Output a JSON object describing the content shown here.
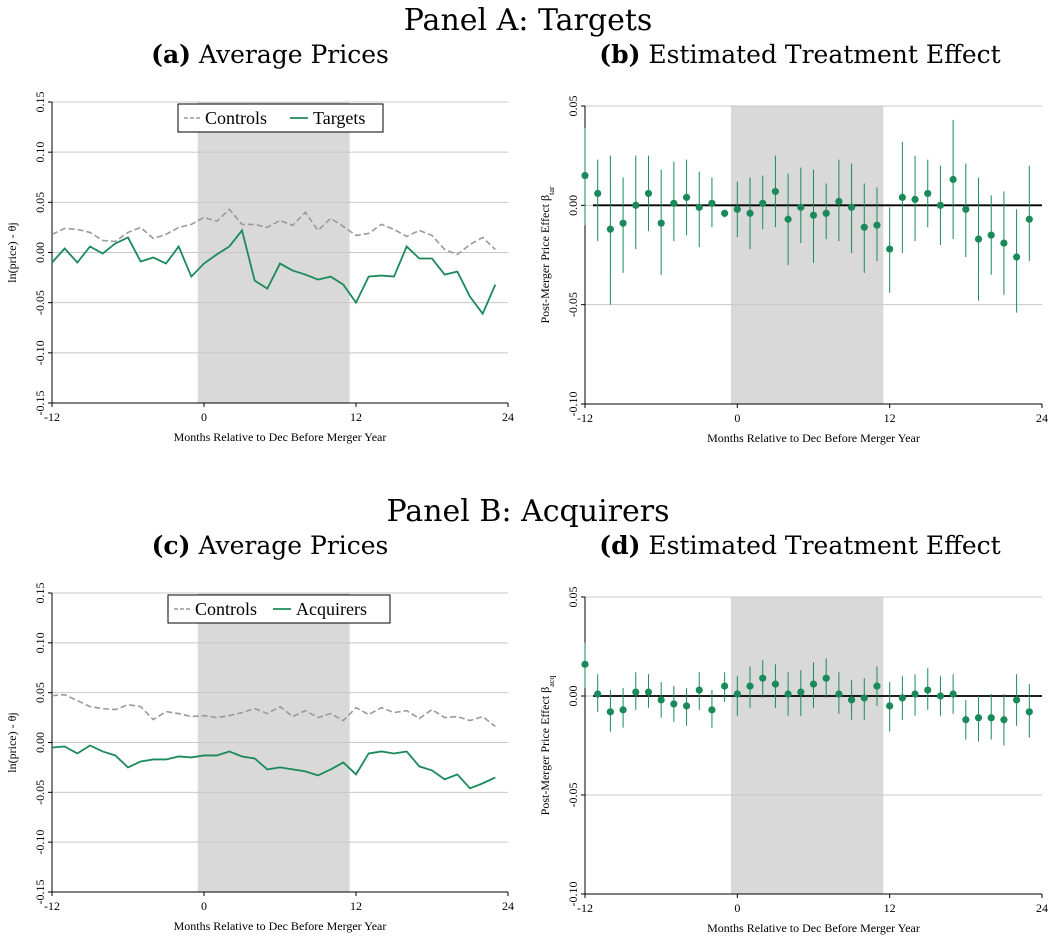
{
  "panels": [
    {
      "title": "Panel A: Targets"
    },
    {
      "title": "Panel B: Acquirers"
    }
  ],
  "colors": {
    "treated": "#1b8a5a",
    "control": "#9a9a9a",
    "shade": "#d9d9d9",
    "grid": "#c8c8c8",
    "zero": "#000000"
  },
  "chart_data": [
    {
      "id": "a",
      "type": "line",
      "label": "(a)",
      "title": "Average Prices",
      "xlabel": "Months Relative to Dec Before Merger Year",
      "ylabel": "ln(price) - θj",
      "xlim": [
        -12,
        24
      ],
      "ylim": [
        -0.15,
        0.15
      ],
      "xticks": [
        -12,
        0,
        12,
        24
      ],
      "xtick_labels": [
        "-12",
        "0",
        "12",
        "24"
      ],
      "yticks": [
        -0.15,
        -0.1,
        -0.05,
        0,
        0.05,
        0.1,
        0.15
      ],
      "ytick_labels": [
        "-0.15",
        "-0.10",
        "-0.05",
        "0.00",
        "0.05",
        "0.10",
        "0.15"
      ],
      "shaded_region": [
        -0.5,
        11.5
      ],
      "grid": true,
      "legend": "top-center",
      "x": [
        -12,
        -11,
        -10,
        -9,
        -8,
        -7,
        -6,
        -5,
        -4,
        -3,
        -2,
        -1,
        0,
        1,
        2,
        3,
        4,
        5,
        6,
        7,
        8,
        9,
        10,
        11,
        12,
        13,
        14,
        15,
        16,
        17,
        18,
        19,
        20,
        21,
        22,
        23
      ],
      "series": [
        {
          "name": "Controls",
          "style": "dash",
          "values": [
            0.018,
            0.024,
            0.023,
            0.02,
            0.012,
            0.011,
            0.02,
            0.025,
            0.014,
            0.018,
            0.025,
            0.028,
            0.035,
            0.031,
            0.043,
            0.028,
            0.028,
            0.025,
            0.032,
            0.027,
            0.04,
            0.022,
            0.034,
            0.026,
            0.017,
            0.019,
            0.028,
            0.023,
            0.016,
            0.022,
            0.017,
            0.003,
            -0.002,
            0.008,
            0.015,
            0.003
          ]
        },
        {
          "name": "Targets",
          "style": "solid",
          "values": [
            -0.01,
            0.004,
            -0.01,
            0.006,
            -0.001,
            0.009,
            0.015,
            -0.009,
            -0.005,
            -0.011,
            0.006,
            -0.024,
            -0.011,
            -0.002,
            0.006,
            0.022,
            -0.028,
            -0.036,
            -0.011,
            -0.018,
            -0.022,
            -0.027,
            -0.024,
            -0.032,
            -0.05,
            -0.024,
            -0.023,
            -0.024,
            0.006,
            -0.006,
            -0.006,
            -0.022,
            -0.019,
            -0.044,
            -0.061,
            -0.032
          ]
        }
      ]
    },
    {
      "id": "b",
      "type": "scatter",
      "label": "(b)",
      "title": "Estimated Treatment Effect",
      "xlabel": "Months Relative to Dec Before Merger Year",
      "ylabel": "Post-Merger Price Effect β",
      "ylabel_sub": "tar",
      "xlim": [
        -12,
        24
      ],
      "ylim": [
        -0.1,
        0.05
      ],
      "xticks": [
        -12,
        0,
        12,
        24
      ],
      "xtick_labels": [
        "-12",
        "0",
        "12",
        "24"
      ],
      "yticks": [
        -0.1,
        -0.05,
        0,
        0.05
      ],
      "ytick_labels": [
        "-0.10",
        "-0.05",
        "0.00",
        "0.05"
      ],
      "shaded_region": [
        -0.5,
        11.5
      ],
      "grid": true,
      "zero_line": true,
      "x": [
        -12,
        -11,
        -10,
        -9,
        -8,
        -7,
        -6,
        -5,
        -4,
        -3,
        -2,
        -1,
        0,
        1,
        2,
        3,
        4,
        5,
        6,
        7,
        8,
        9,
        10,
        11,
        12,
        13,
        14,
        15,
        16,
        17,
        18,
        19,
        20,
        21,
        22,
        23
      ],
      "values": [
        0.015,
        0.006,
        -0.012,
        -0.009,
        0.0,
        0.006,
        -0.009,
        0.001,
        0.004,
        -0.001,
        0.001,
        -0.004,
        -0.002,
        -0.004,
        0.001,
        0.007,
        -0.007,
        -0.001,
        -0.005,
        -0.004,
        0.002,
        -0.001,
        -0.011,
        -0.01,
        -0.022,
        0.004,
        0.003,
        0.006,
        0.0,
        0.013,
        -0.002,
        -0.017,
        -0.015,
        -0.019,
        -0.026,
        -0.007
      ],
      "ci_low": [
        -0.01,
        -0.018,
        -0.05,
        -0.034,
        -0.022,
        -0.013,
        -0.035,
        -0.018,
        -0.015,
        -0.021,
        -0.011,
        -0.006,
        -0.016,
        -0.022,
        -0.012,
        -0.011,
        -0.03,
        -0.019,
        -0.029,
        -0.017,
        -0.018,
        -0.024,
        -0.034,
        -0.028,
        -0.044,
        -0.024,
        -0.018,
        -0.011,
        -0.02,
        -0.017,
        -0.026,
        -0.048,
        -0.035,
        -0.045,
        -0.054,
        -0.028
      ],
      "ci_high": [
        0.039,
        0.023,
        0.025,
        0.014,
        0.025,
        0.025,
        0.018,
        0.022,
        0.023,
        0.017,
        0.014,
        -0.003,
        0.012,
        0.014,
        0.015,
        0.025,
        0.016,
        0.019,
        0.018,
        0.011,
        0.023,
        0.021,
        0.011,
        0.009,
        -0.001,
        0.032,
        0.025,
        0.023,
        0.02,
        0.043,
        0.021,
        0.014,
        0.005,
        0.007,
        -0.002,
        0.02
      ]
    },
    {
      "id": "c",
      "type": "line",
      "label": "(c)",
      "title": "Average Prices",
      "xlabel": "Months Relative to Dec Before Merger Year",
      "ylabel": "ln(price) - θj",
      "xlim": [
        -12,
        24
      ],
      "ylim": [
        -0.15,
        0.15
      ],
      "xticks": [
        -12,
        0,
        12,
        24
      ],
      "xtick_labels": [
        "-12",
        "0",
        "12",
        "24"
      ],
      "yticks": [
        -0.15,
        -0.1,
        -0.05,
        0,
        0.05,
        0.1,
        0.15
      ],
      "ytick_labels": [
        "-0.15",
        "-0.10",
        "-0.05",
        "0.00",
        "0.05",
        "0.10",
        "0.15"
      ],
      "shaded_region": [
        -0.5,
        11.5
      ],
      "grid": true,
      "legend": "top-center",
      "x": [
        -12,
        -11,
        -10,
        -9,
        -8,
        -7,
        -6,
        -5,
        -4,
        -3,
        -2,
        -1,
        0,
        1,
        2,
        3,
        4,
        5,
        6,
        7,
        8,
        9,
        10,
        11,
        12,
        13,
        14,
        15,
        16,
        17,
        18,
        19,
        20,
        21,
        22,
        23
      ],
      "series": [
        {
          "name": "Controls",
          "style": "dash",
          "values": [
            0.047,
            0.048,
            0.042,
            0.036,
            0.034,
            0.033,
            0.038,
            0.036,
            0.023,
            0.031,
            0.029,
            0.026,
            0.027,
            0.025,
            0.027,
            0.03,
            0.034,
            0.029,
            0.036,
            0.026,
            0.032,
            0.025,
            0.029,
            0.022,
            0.035,
            0.028,
            0.035,
            0.03,
            0.032,
            0.024,
            0.033,
            0.025,
            0.026,
            0.022,
            0.026,
            0.016
          ]
        },
        {
          "name": "Acquirers",
          "style": "solid",
          "values": [
            -0.005,
            -0.004,
            -0.011,
            -0.003,
            -0.009,
            -0.013,
            -0.025,
            -0.019,
            -0.017,
            -0.017,
            -0.014,
            -0.015,
            -0.013,
            -0.013,
            -0.009,
            -0.014,
            -0.016,
            -0.027,
            -0.025,
            -0.027,
            -0.029,
            -0.033,
            -0.027,
            -0.02,
            -0.032,
            -0.011,
            -0.009,
            -0.011,
            -0.009,
            -0.024,
            -0.028,
            -0.037,
            -0.032,
            -0.046,
            -0.041,
            -0.035
          ]
        }
      ]
    },
    {
      "id": "d",
      "type": "scatter",
      "label": "(d)",
      "title": "Estimated Treatment Effect",
      "xlabel": "Months Relative to Dec Before Merger Year",
      "ylabel": "Post-Merger Price Effect β",
      "ylabel_sub": "acq",
      "xlim": [
        -12,
        24
      ],
      "ylim": [
        -0.1,
        0.05
      ],
      "xticks": [
        -12,
        0,
        12,
        24
      ],
      "xtick_labels": [
        "-12",
        "0",
        "12",
        "24"
      ],
      "yticks": [
        -0.1,
        -0.05,
        0,
        0.05
      ],
      "ytick_labels": [
        "-0.10",
        "-0.05",
        "0.00",
        "0.05"
      ],
      "shaded_region": [
        -0.5,
        11.5
      ],
      "grid": true,
      "zero_line": true,
      "x": [
        -12,
        -11,
        -10,
        -9,
        -8,
        -7,
        -6,
        -5,
        -4,
        -3,
        -2,
        -1,
        0,
        1,
        2,
        3,
        4,
        5,
        6,
        7,
        8,
        9,
        10,
        11,
        12,
        13,
        14,
        15,
        16,
        17,
        18,
        19,
        20,
        21,
        22,
        23
      ],
      "values": [
        0.016,
        0.001,
        -0.008,
        -0.007,
        0.002,
        0.002,
        -0.002,
        -0.004,
        -0.005,
        0.003,
        -0.007,
        0.005,
        0.001,
        0.005,
        0.009,
        0.006,
        0.001,
        0.002,
        0.006,
        0.009,
        0.001,
        -0.002,
        -0.001,
        0.005,
        -0.005,
        -0.001,
        0.001,
        0.003,
        0.0,
        0.001,
        -0.012,
        -0.011,
        -0.011,
        -0.012,
        -0.002,
        -0.008
      ],
      "ci_low": [
        0.004,
        -0.008,
        -0.018,
        -0.016,
        -0.007,
        -0.006,
        -0.011,
        -0.013,
        -0.015,
        -0.007,
        -0.016,
        -0.003,
        -0.01,
        -0.006,
        -0.001,
        -0.006,
        -0.01,
        -0.01,
        -0.006,
        -0.001,
        -0.009,
        -0.012,
        -0.012,
        -0.005,
        -0.018,
        -0.012,
        -0.01,
        -0.007,
        -0.01,
        -0.009,
        -0.022,
        -0.023,
        -0.022,
        -0.025,
        -0.015,
        -0.021
      ],
      "ci_high": [
        0.027,
        0.011,
        0.003,
        0.004,
        0.012,
        0.011,
        0.007,
        0.005,
        0.004,
        0.012,
        0.003,
        0.012,
        0.01,
        0.015,
        0.018,
        0.016,
        0.012,
        0.013,
        0.017,
        0.019,
        0.012,
        0.008,
        0.009,
        0.015,
        0.007,
        0.01,
        0.011,
        0.014,
        0.01,
        0.011,
        -0.002,
        0.0,
        0.001,
        0.001,
        0.011,
        0.006
      ]
    }
  ]
}
